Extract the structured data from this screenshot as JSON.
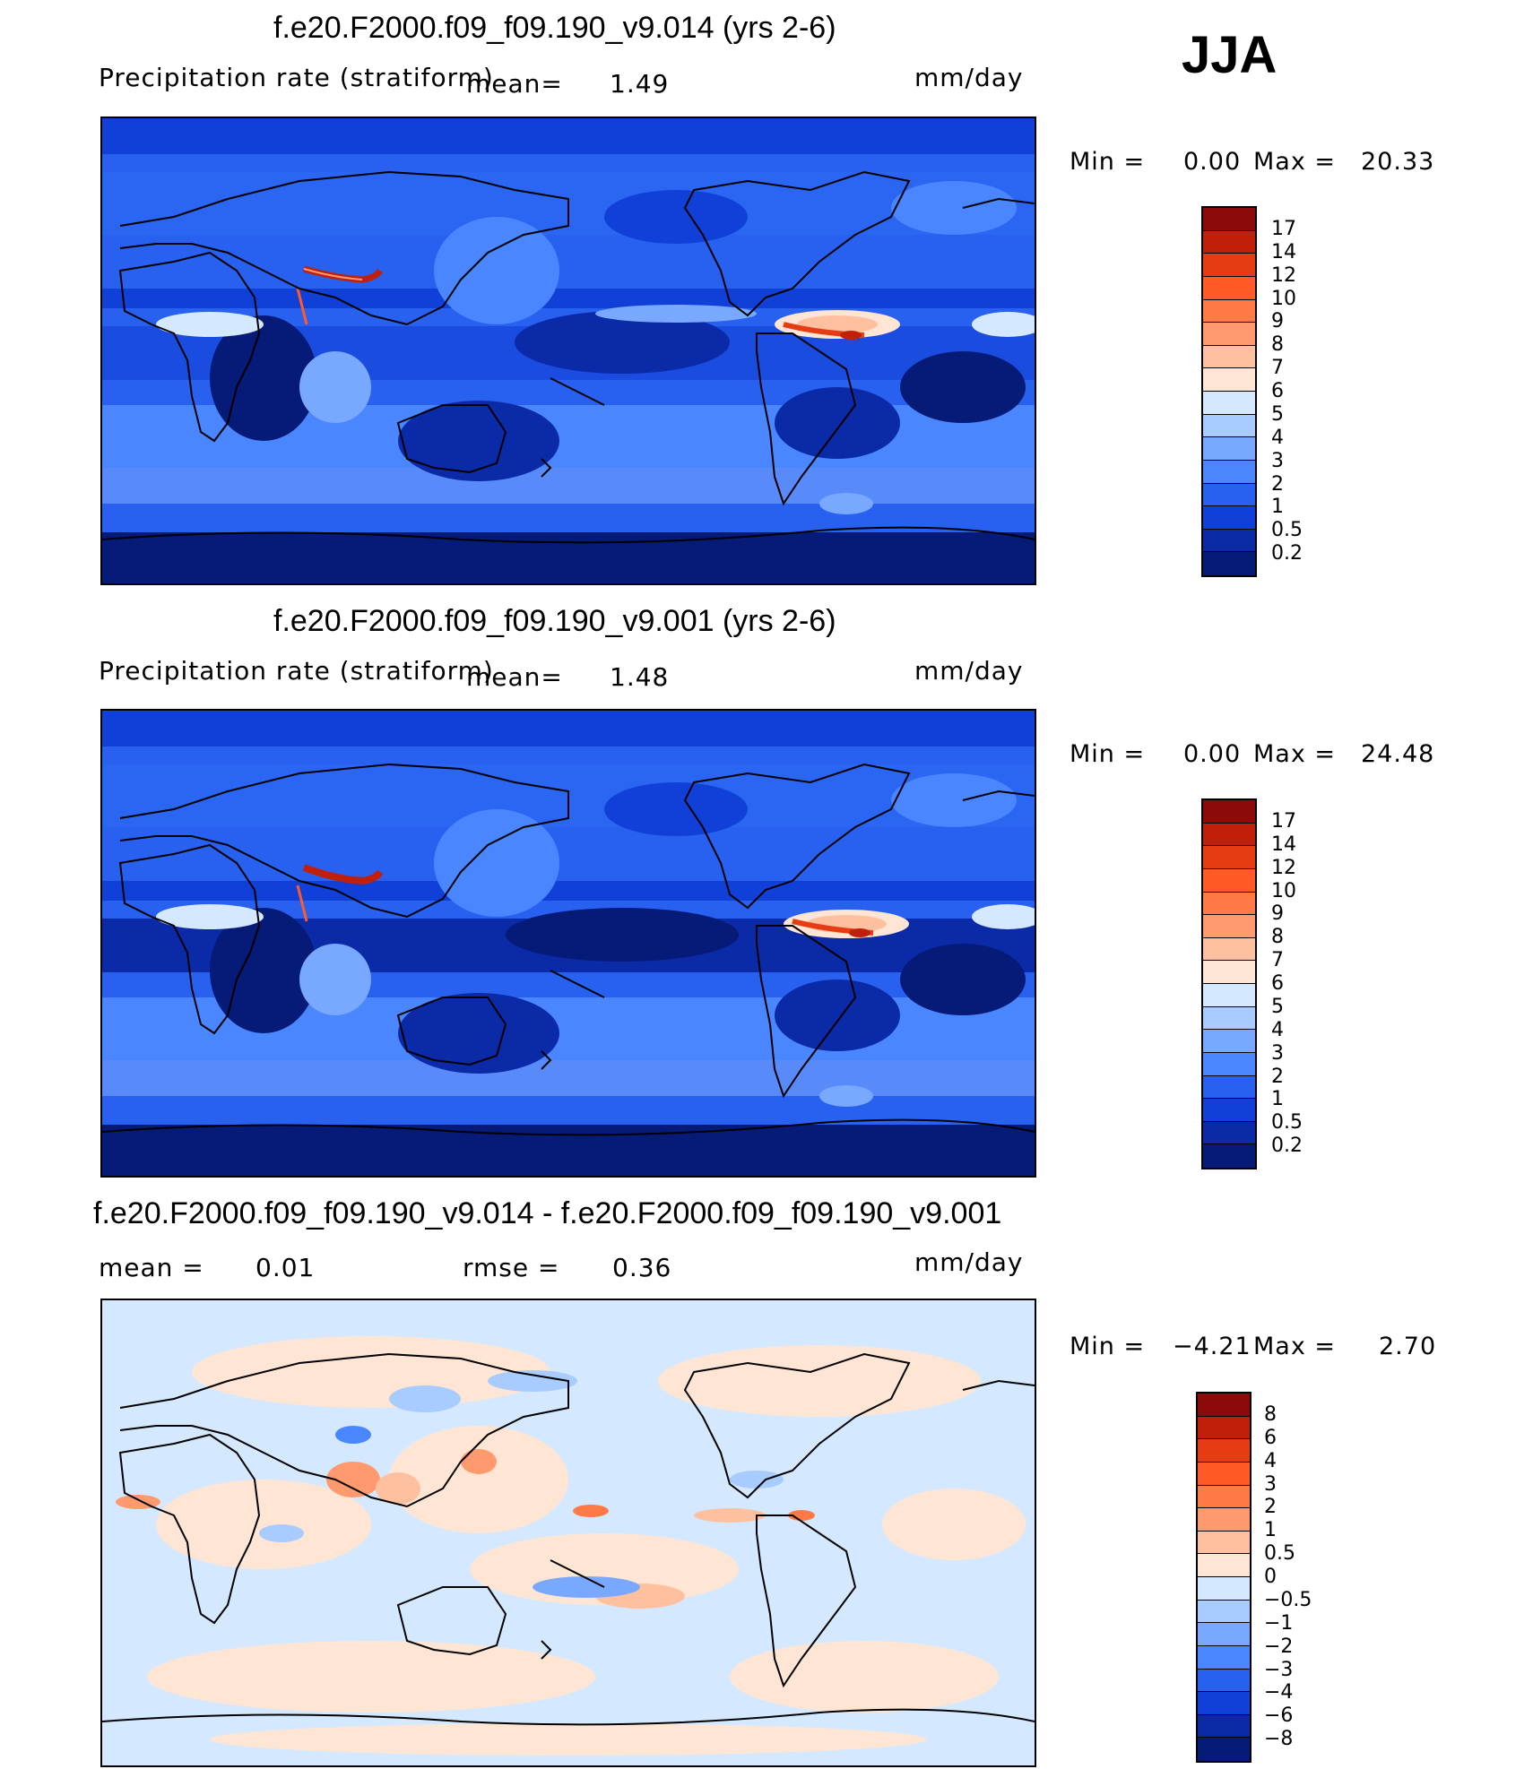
{
  "season": "JJA",
  "panels": [
    {
      "title": "f.e20.F2000.f09_f09.190_v9.014 (yrs 2-6)",
      "variable": "Precipitation rate (stratiform)",
      "mean_label": "mean=",
      "mean_value": "1.49",
      "units": "mm/day",
      "min_label": "Min  =",
      "min_value": "0.00",
      "max_label": "Max  =",
      "max_value": "20.33",
      "colorbar_labels": [
        "17",
        "14",
        "12",
        "10",
        "9",
        "8",
        "7",
        "6",
        "5",
        "4",
        "3",
        "2",
        "1",
        "0.5",
        "0.2"
      ],
      "colors": [
        "#8c0a0a",
        "#c0200a",
        "#e63c14",
        "#ff5a28",
        "#ff7a46",
        "#ff9a6e",
        "#ffc0a0",
        "#ffe6d4",
        "#d4e8ff",
        "#a8ccff",
        "#78a8ff",
        "#4a86ff",
        "#2860f0",
        "#1040d8",
        "#0a2aa8",
        "#061a78"
      ]
    },
    {
      "title": "f.e20.F2000.f09_f09.190_v9.001 (yrs 2-6)",
      "variable": "Precipitation rate (stratiform)",
      "mean_label": "mean=",
      "mean_value": "1.48",
      "units": "mm/day",
      "min_label": "Min  =",
      "min_value": "0.00",
      "max_label": "Max  =",
      "max_value": "24.48",
      "colorbar_labels": [
        "17",
        "14",
        "12",
        "10",
        "9",
        "8",
        "7",
        "6",
        "5",
        "4",
        "3",
        "2",
        "1",
        "0.5",
        "0.2"
      ],
      "colors": [
        "#8c0a0a",
        "#c0200a",
        "#e63c14",
        "#ff5a28",
        "#ff7a46",
        "#ff9a6e",
        "#ffc0a0",
        "#ffe6d4",
        "#d4e8ff",
        "#a8ccff",
        "#78a8ff",
        "#4a86ff",
        "#2860f0",
        "#1040d8",
        "#0a2aa8",
        "#061a78"
      ]
    },
    {
      "title": "f.e20.F2000.f09_f09.190_v9.014 - f.e20.F2000.f09_f09.190_v9.001",
      "mean_label": "mean  =",
      "mean_value": "0.01",
      "rmse_label": "rmse  =",
      "rmse_value": "0.36",
      "units": "mm/day",
      "min_label": "Min  =",
      "min_value": "−4.21",
      "max_label": "Max  =",
      "max_value": "2.70",
      "colorbar_labels": [
        "8",
        "6",
        "4",
        "3",
        "2",
        "1",
        "0.5",
        "0",
        "−0.5",
        "−1",
        "−2",
        "−3",
        "−4",
        "−6",
        "−8"
      ],
      "colors": [
        "#8c0a0a",
        "#c0200a",
        "#e63c14",
        "#ff5a28",
        "#ff7a46",
        "#ff9a6e",
        "#ffc0a0",
        "#ffe6d4",
        "#d4e8ff",
        "#a8ccff",
        "#78a8ff",
        "#4a86ff",
        "#2860f0",
        "#1040d8",
        "#0a2aa8",
        "#061a78"
      ]
    }
  ]
}
